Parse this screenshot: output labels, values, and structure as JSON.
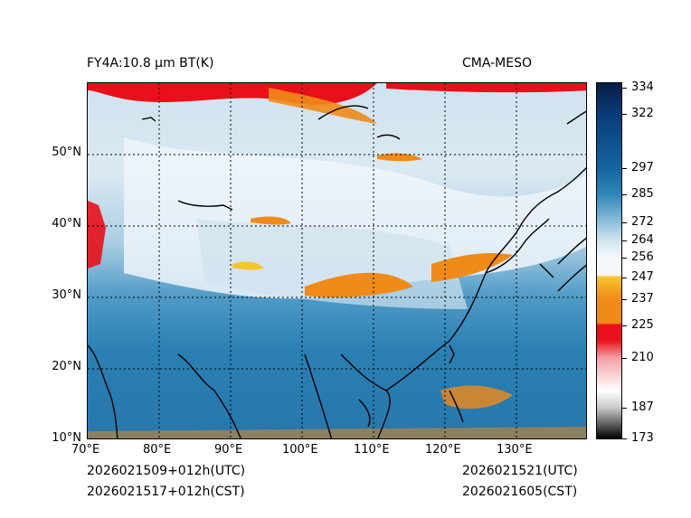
{
  "header": {
    "product_title": "FY4A:10.8 μm BT(K)",
    "model_label": "CMA-MESO"
  },
  "footer": {
    "init_utc": "2026021509+012h(UTC)",
    "init_cst": "2026021517+012h(CST)",
    "valid_utc": "2026021521(UTC)",
    "valid_cst": "2026021605(CST)"
  },
  "map": {
    "lon_range": [
      70,
      140
    ],
    "lat_range": [
      10,
      60
    ],
    "lon_ticks": [
      {
        "value": 70,
        "label": "70°E"
      },
      {
        "value": 80,
        "label": "80°E"
      },
      {
        "value": 90,
        "label": "90°E"
      },
      {
        "value": 100,
        "label": "100°E"
      },
      {
        "value": 110,
        "label": "110°E"
      },
      {
        "value": 120,
        "label": "120°E"
      },
      {
        "value": 130,
        "label": "130°E"
      }
    ],
    "lat_ticks": [
      {
        "value": 10,
        "label": "10°N"
      },
      {
        "value": 20,
        "label": "20°N"
      },
      {
        "value": 30,
        "label": "30°N"
      },
      {
        "value": 40,
        "label": "40°N"
      },
      {
        "value": 50,
        "label": "50°N"
      }
    ]
  },
  "colorbar": {
    "range": [
      173,
      336
    ],
    "ticks": [
      {
        "value": 334,
        "label": "334"
      },
      {
        "value": 322,
        "label": "322"
      },
      {
        "value": 297,
        "label": "297"
      },
      {
        "value": 285,
        "label": "285"
      },
      {
        "value": 272,
        "label": "272"
      },
      {
        "value": 264,
        "label": "264"
      },
      {
        "value": 256,
        "label": "256"
      },
      {
        "value": 247,
        "label": "247"
      },
      {
        "value": 237,
        "label": "237"
      },
      {
        "value": 225,
        "label": "225"
      },
      {
        "value": 210,
        "label": "210"
      },
      {
        "value": 187,
        "label": "187"
      },
      {
        "value": 173,
        "label": "173"
      }
    ],
    "colors": {
      "c334": "#08204a",
      "c322": "#0a3a7a",
      "c297": "#1465a0",
      "c285": "#2f86b8",
      "c272": "#8fc0db",
      "c264": "#cfe3ef",
      "c256": "#f4f8fb",
      "c247": "#f7c52c",
      "c237": "#f08a18",
      "c225": "#e8101a",
      "c210": "#f5a0a4",
      "c187": "#c8c8c8",
      "c173": "#000000"
    }
  }
}
